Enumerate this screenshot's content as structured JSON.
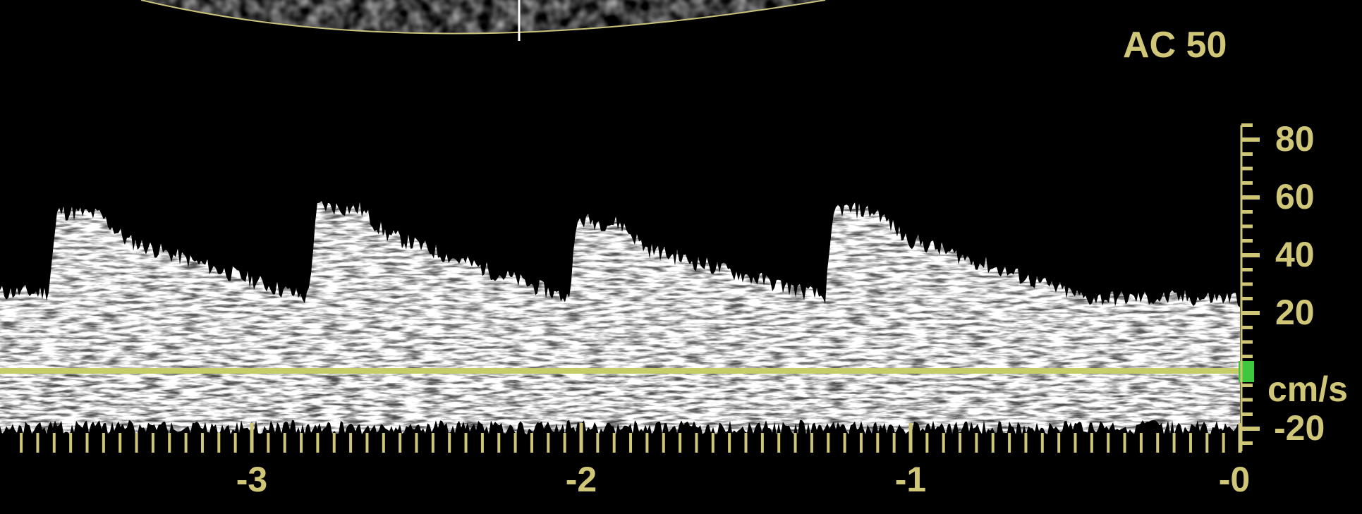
{
  "display": {
    "gain_label": "AC 50",
    "velocity_unit": "cm/s",
    "accent_color": "#d0c678",
    "baseline_marker_color": "#3fc73f"
  },
  "velocity_scale": {
    "ticks": [
      {
        "value": 80,
        "label": "80"
      },
      {
        "value": 60,
        "label": "60"
      },
      {
        "value": 40,
        "label": "40"
      },
      {
        "value": 20,
        "label": "20"
      },
      {
        "value": -20,
        "label": "-20"
      }
    ]
  },
  "time_scale": {
    "ticks": [
      {
        "value": -3,
        "label": "-3"
      },
      {
        "value": -2,
        "label": "-2"
      },
      {
        "value": -1,
        "label": "-1"
      },
      {
        "value": 0,
        "label": "-0"
      }
    ]
  },
  "waveform": {
    "peak_systolic_velocities_cm_s": [
      55,
      57,
      52,
      56
    ],
    "end_diastolic_velocity_cm_s": 25
  }
}
